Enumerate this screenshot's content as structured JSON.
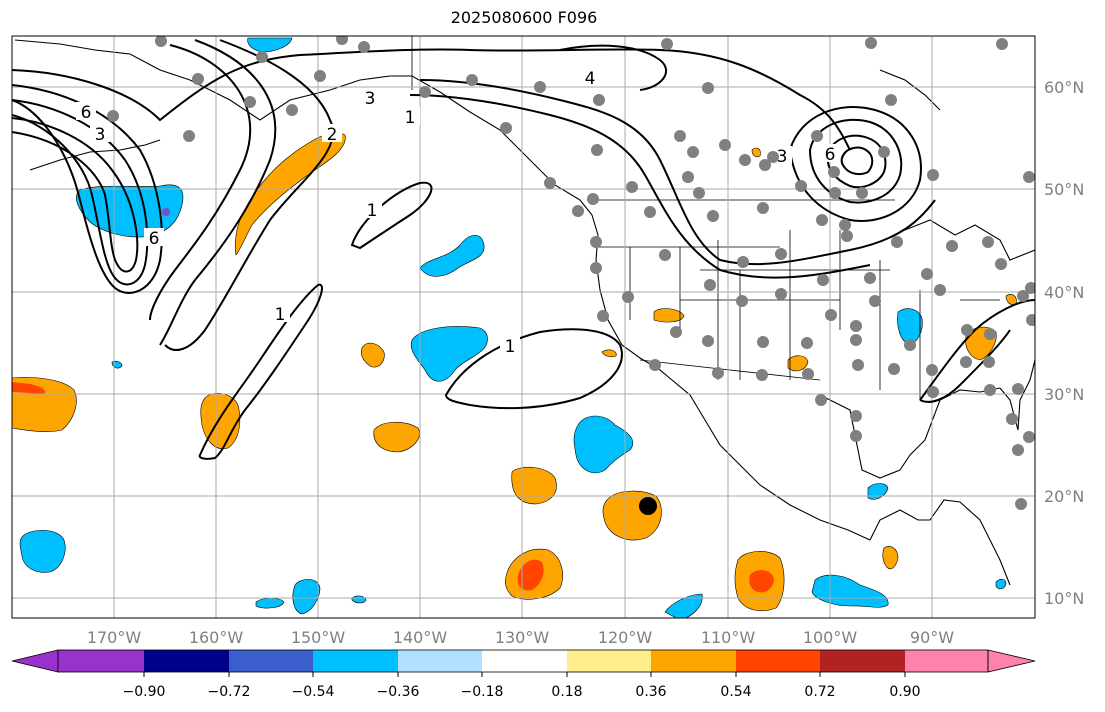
{
  "title": "2025080600 F096",
  "map": {
    "lon_labels": [
      "170°W",
      "160°W",
      "150°W",
      "140°W",
      "130°W",
      "120°W",
      "110°W",
      "100°W",
      "90°W"
    ],
    "lat_labels": [
      "60°N",
      "50°N",
      "40°N",
      "30°N",
      "20°N",
      "10°N"
    ],
    "contour_labels": [
      "6",
      "3",
      "6",
      "2",
      "1",
      "1",
      "3",
      "4",
      "3",
      "6",
      "1",
      "1"
    ]
  },
  "colorbar": {
    "colors": [
      "#9932cc",
      "#00008b",
      "#3a5fcd",
      "#00bfff",
      "#b0e2ff",
      "#ffffff",
      "#ffec8b",
      "#ffa500",
      "#ff4500",
      "#b22222",
      "#ff82ab"
    ],
    "tick_labels": [
      "−0.90",
      "−0.72",
      "−0.54",
      "−0.36",
      "−0.18",
      "0.18",
      "0.36",
      "0.54",
      "0.72",
      "0.90"
    ]
  }
}
